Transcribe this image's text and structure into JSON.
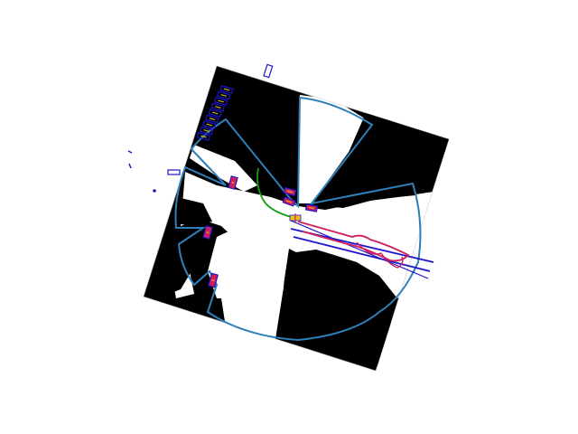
{
  "figure": {
    "kind": "occupancy-grid-with-lidar-scan",
    "colors": {
      "background": "#ffffff",
      "occupied": "#000000",
      "free": "#ffffff",
      "scan_polygon": "#2f7fb8",
      "agent_boxes": "#1c16c8",
      "agent_fill": "#d11e5a",
      "trajectory": "#12a012",
      "predicted_lanes": "#1c16c8",
      "predicted_path": "#d11e5a",
      "ego_marker": "#e8c21a"
    }
  }
}
